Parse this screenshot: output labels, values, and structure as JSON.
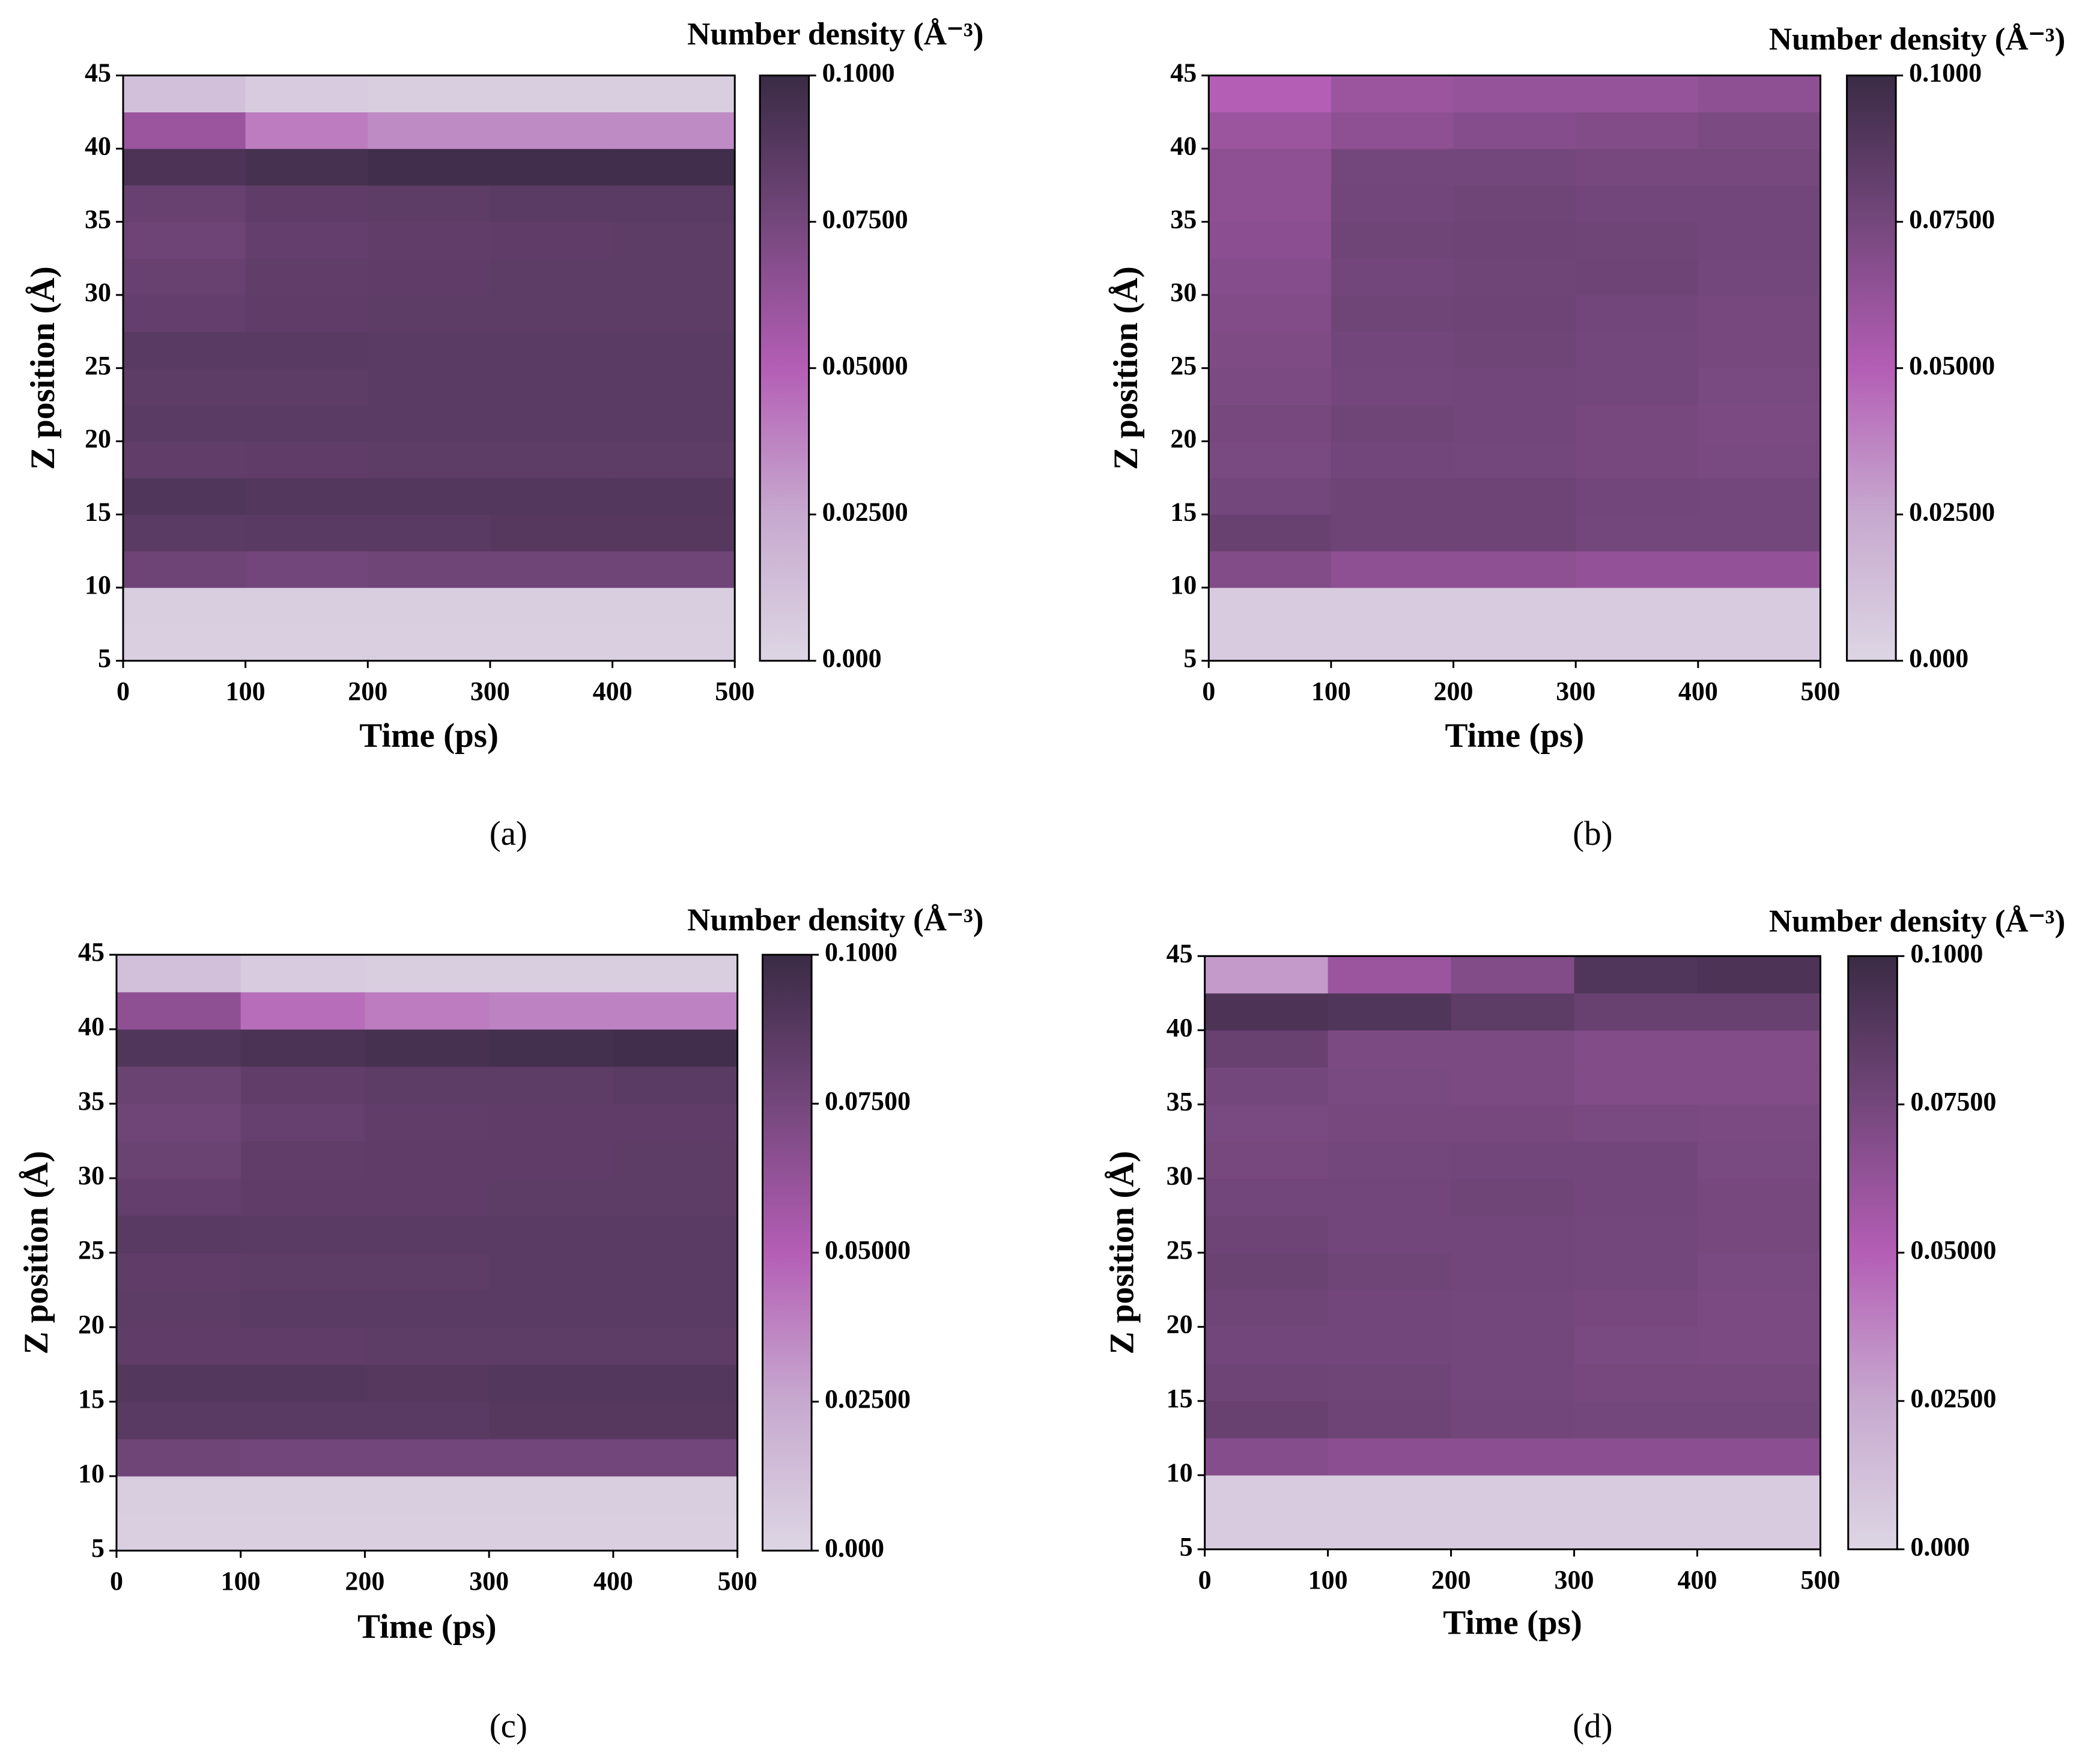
{
  "chart_data": [
    {
      "type": "heatmap",
      "panel_label": "(a)",
      "colorbar_label": "Number density (Å⁻³)",
      "xlabel": "Time (ps)",
      "ylabel": "Z position (Å)",
      "xlim": [
        0,
        500
      ],
      "xticks": [
        0,
        100,
        200,
        300,
        400,
        500
      ],
      "ylim": [
        5,
        45
      ],
      "yticks": [
        5,
        10,
        15,
        20,
        25,
        30,
        35,
        40,
        45
      ],
      "clim": [
        0,
        0.1
      ],
      "cticks": [
        {
          "value": 0,
          "label": "0.000"
        },
        {
          "value": 0.025,
          "label": "0.02500"
        },
        {
          "value": 0.05,
          "label": "0.05000"
        },
        {
          "value": 0.075,
          "label": "0.07500"
        },
        {
          "value": 0.1,
          "label": "0.1000"
        }
      ],
      "colormap": [
        "#ddd6e4",
        "#c7a9cf",
        "#b45eb5",
        "#74477c",
        "#3a2b45"
      ],
      "x": [
        50,
        150,
        250,
        350,
        450
      ],
      "y": [
        6.25,
        8.75,
        11.25,
        13.75,
        16.25,
        18.75,
        21.25,
        23.75,
        26.25,
        28.75,
        31.25,
        33.75,
        36.25,
        38.75,
        41.25,
        43.75
      ],
      "z": [
        [
          0.004,
          0.004,
          0.004,
          0.004,
          0.004
        ],
        [
          0.005,
          0.005,
          0.005,
          0.005,
          0.005
        ],
        [
          0.078,
          0.076,
          0.077,
          0.077,
          0.077
        ],
        [
          0.086,
          0.087,
          0.087,
          0.088,
          0.088
        ],
        [
          0.09,
          0.089,
          0.089,
          0.089,
          0.089
        ],
        [
          0.083,
          0.084,
          0.085,
          0.085,
          0.085
        ],
        [
          0.086,
          0.086,
          0.086,
          0.086,
          0.086
        ],
        [
          0.085,
          0.085,
          0.086,
          0.086,
          0.086
        ],
        [
          0.087,
          0.087,
          0.086,
          0.086,
          0.086
        ],
        [
          0.082,
          0.084,
          0.085,
          0.085,
          0.085
        ],
        [
          0.08,
          0.083,
          0.084,
          0.085,
          0.085
        ],
        [
          0.078,
          0.082,
          0.083,
          0.084,
          0.085
        ],
        [
          0.08,
          0.084,
          0.085,
          0.086,
          0.086
        ],
        [
          0.092,
          0.095,
          0.097,
          0.097,
          0.097
        ],
        [
          0.06,
          0.04,
          0.035,
          0.035,
          0.035
        ],
        [
          0.012,
          0.006,
          0.005,
          0.005,
          0.005
        ]
      ]
    },
    {
      "type": "heatmap",
      "panel_label": "(b)",
      "colorbar_label": "Number density (Å⁻³)",
      "xlabel": "Time (ps)",
      "ylabel": "Z position (Å)",
      "xlim": [
        0,
        500
      ],
      "xticks": [
        0,
        100,
        200,
        300,
        400,
        500
      ],
      "ylim": [
        5,
        45
      ],
      "yticks": [
        5,
        10,
        15,
        20,
        25,
        30,
        35,
        40,
        45
      ],
      "clim": [
        0,
        0.1
      ],
      "cticks": [
        {
          "value": 0,
          "label": "0.000"
        },
        {
          "value": 0.025,
          "label": "0.02500"
        },
        {
          "value": 0.05,
          "label": "0.05000"
        },
        {
          "value": 0.075,
          "label": "0.07500"
        },
        {
          "value": 0.1,
          "label": "0.1000"
        }
      ],
      "colormap": [
        "#ddd6e4",
        "#c7a9cf",
        "#b45eb5",
        "#74477c",
        "#3a2b45"
      ],
      "x": [
        50,
        150,
        250,
        350,
        450
      ],
      "y": [
        6.25,
        8.75,
        11.25,
        13.75,
        16.25,
        18.75,
        21.25,
        23.75,
        26.25,
        28.75,
        31.25,
        33.75,
        36.25,
        38.75,
        41.25,
        43.75
      ],
      "z": [
        [
          0.006,
          0.006,
          0.006,
          0.006,
          0.006
        ],
        [
          0.006,
          0.006,
          0.006,
          0.006,
          0.006
        ],
        [
          0.07,
          0.065,
          0.065,
          0.063,
          0.063
        ],
        [
          0.08,
          0.078,
          0.078,
          0.075,
          0.075
        ],
        [
          0.075,
          0.078,
          0.078,
          0.076,
          0.075
        ],
        [
          0.073,
          0.076,
          0.075,
          0.074,
          0.073
        ],
        [
          0.074,
          0.077,
          0.076,
          0.074,
          0.072
        ],
        [
          0.072,
          0.075,
          0.076,
          0.075,
          0.073
        ],
        [
          0.071,
          0.076,
          0.077,
          0.075,
          0.074
        ],
        [
          0.07,
          0.077,
          0.078,
          0.076,
          0.074
        ],
        [
          0.068,
          0.076,
          0.077,
          0.078,
          0.075
        ],
        [
          0.066,
          0.077,
          0.078,
          0.077,
          0.076
        ],
        [
          0.065,
          0.076,
          0.077,
          0.076,
          0.076
        ],
        [
          0.065,
          0.075,
          0.075,
          0.074,
          0.074
        ],
        [
          0.06,
          0.065,
          0.068,
          0.07,
          0.072
        ],
        [
          0.05,
          0.06,
          0.062,
          0.062,
          0.065
        ]
      ]
    },
    {
      "type": "heatmap",
      "panel_label": "(c)",
      "colorbar_label": "Number density (Å⁻³)",
      "xlabel": "Time (ps)",
      "ylabel": "Z position (Å)",
      "xlim": [
        0,
        500
      ],
      "xticks": [
        0,
        100,
        200,
        300,
        400,
        500
      ],
      "ylim": [
        5,
        45
      ],
      "yticks": [
        5,
        10,
        15,
        20,
        25,
        30,
        35,
        40,
        45
      ],
      "clim": [
        0,
        0.1
      ],
      "cticks": [
        {
          "value": 0,
          "label": "0.000"
        },
        {
          "value": 0.025,
          "label": "0.02500"
        },
        {
          "value": 0.05,
          "label": "0.05000"
        },
        {
          "value": 0.075,
          "label": "0.07500"
        },
        {
          "value": 0.1,
          "label": "0.1000"
        }
      ],
      "colormap": [
        "#ddd6e4",
        "#c7a9cf",
        "#b45eb5",
        "#74477c",
        "#3a2b45"
      ],
      "x": [
        50,
        150,
        250,
        350,
        450
      ],
      "y": [
        6.25,
        8.75,
        11.25,
        13.75,
        16.25,
        18.75,
        21.25,
        23.75,
        26.25,
        28.75,
        31.25,
        33.75,
        36.25,
        38.75,
        41.25,
        43.75
      ],
      "z": [
        [
          0.004,
          0.004,
          0.004,
          0.004,
          0.004
        ],
        [
          0.005,
          0.005,
          0.005,
          0.005,
          0.005
        ],
        [
          0.077,
          0.076,
          0.076,
          0.076,
          0.076
        ],
        [
          0.087,
          0.087,
          0.087,
          0.088,
          0.088
        ],
        [
          0.089,
          0.089,
          0.088,
          0.089,
          0.089
        ],
        [
          0.084,
          0.084,
          0.085,
          0.085,
          0.085
        ],
        [
          0.085,
          0.086,
          0.086,
          0.086,
          0.086
        ],
        [
          0.084,
          0.085,
          0.085,
          0.086,
          0.086
        ],
        [
          0.087,
          0.086,
          0.086,
          0.086,
          0.086
        ],
        [
          0.082,
          0.084,
          0.084,
          0.085,
          0.085
        ],
        [
          0.079,
          0.083,
          0.084,
          0.084,
          0.085
        ],
        [
          0.077,
          0.081,
          0.083,
          0.084,
          0.084
        ],
        [
          0.079,
          0.083,
          0.085,
          0.085,
          0.086
        ],
        [
          0.09,
          0.093,
          0.095,
          0.096,
          0.097
        ],
        [
          0.065,
          0.045,
          0.04,
          0.038,
          0.038
        ],
        [
          0.012,
          0.006,
          0.005,
          0.005,
          0.005
        ]
      ]
    },
    {
      "type": "heatmap",
      "panel_label": "(d)",
      "colorbar_label": "Number density (Å⁻³)",
      "xlabel": "Time (ps)",
      "ylabel": "Z position (Å)",
      "xlim": [
        0,
        500
      ],
      "xticks": [
        0,
        100,
        200,
        300,
        400,
        500
      ],
      "ylim": [
        5,
        45
      ],
      "yticks": [
        5,
        10,
        15,
        20,
        25,
        30,
        35,
        40,
        45
      ],
      "clim": [
        0,
        0.1
      ],
      "cticks": [
        {
          "value": 0,
          "label": "0.000"
        },
        {
          "value": 0.025,
          "label": "0.02500"
        },
        {
          "value": 0.05,
          "label": "0.05000"
        },
        {
          "value": 0.075,
          "label": "0.07500"
        },
        {
          "value": 0.1,
          "label": "0.1000"
        }
      ],
      "colormap": [
        "#ddd6e4",
        "#c7a9cf",
        "#b45eb5",
        "#74477c",
        "#3a2b45"
      ],
      "x": [
        50,
        150,
        250,
        350,
        450
      ],
      "y": [
        6.25,
        8.75,
        11.25,
        13.75,
        16.25,
        18.75,
        21.25,
        23.75,
        26.25,
        28.75,
        31.25,
        33.75,
        36.25,
        38.75,
        41.25,
        43.75
      ],
      "z": [
        [
          0.006,
          0.006,
          0.006,
          0.006,
          0.006
        ],
        [
          0.006,
          0.006,
          0.006,
          0.006,
          0.006
        ],
        [
          0.068,
          0.066,
          0.066,
          0.066,
          0.066
        ],
        [
          0.08,
          0.078,
          0.076,
          0.075,
          0.075
        ],
        [
          0.078,
          0.077,
          0.075,
          0.074,
          0.074
        ],
        [
          0.076,
          0.076,
          0.075,
          0.073,
          0.072
        ],
        [
          0.077,
          0.076,
          0.075,
          0.074,
          0.072
        ],
        [
          0.079,
          0.077,
          0.076,
          0.075,
          0.073
        ],
        [
          0.078,
          0.076,
          0.076,
          0.075,
          0.074
        ],
        [
          0.076,
          0.076,
          0.077,
          0.076,
          0.074
        ],
        [
          0.074,
          0.075,
          0.076,
          0.076,
          0.073
        ],
        [
          0.073,
          0.074,
          0.074,
          0.073,
          0.072
        ],
        [
          0.075,
          0.073,
          0.072,
          0.07,
          0.07
        ],
        [
          0.08,
          0.072,
          0.072,
          0.07,
          0.07
        ],
        [
          0.092,
          0.09,
          0.085,
          0.08,
          0.08
        ],
        [
          0.03,
          0.06,
          0.07,
          0.09,
          0.092
        ]
      ]
    }
  ]
}
